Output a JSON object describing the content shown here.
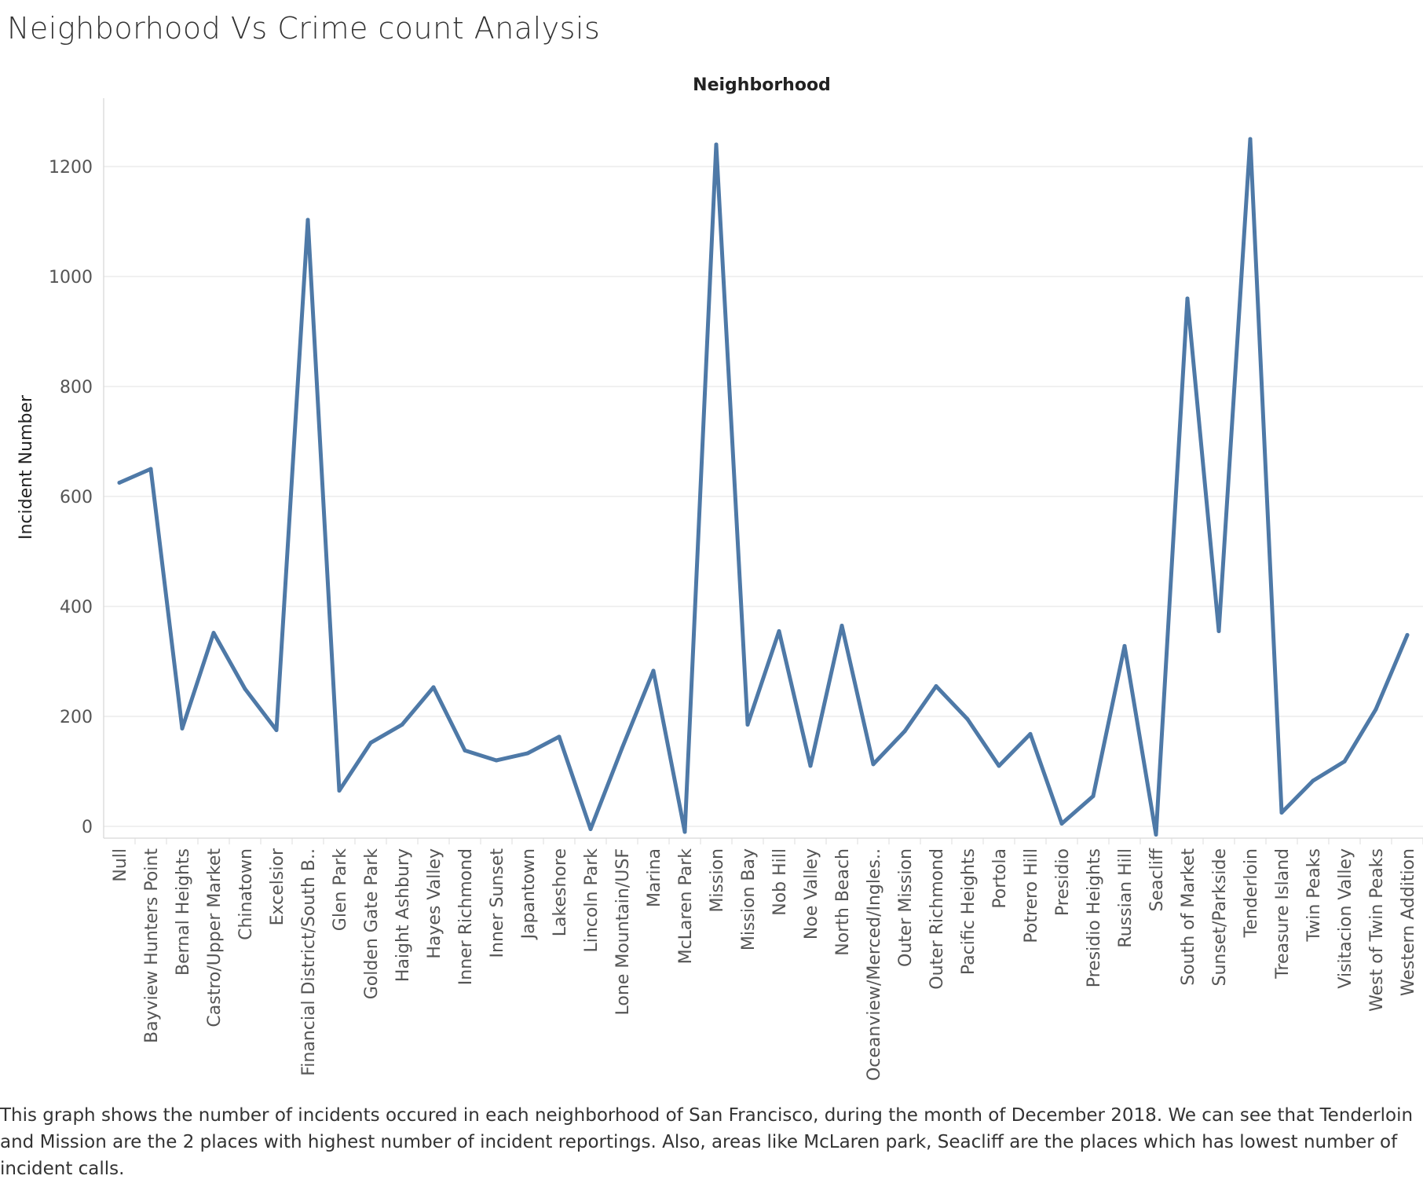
{
  "title": "Neighborhood Vs Crime count Analysis",
  "caption": "This graph shows the number of incidents occured in each neighborhood of San Francisco, during the month of December 2018. We can see that Tenderloin and Mission are the 2 places with highest number of incident reportings. Also, areas like McLaren park, Seacliff are the places which has lowest number of incident calls.",
  "colors": {
    "line": "#4e79a7",
    "grid": "#ececec",
    "axis": "#dddddd"
  },
  "chart_data": {
    "type": "line",
    "title": "Neighborhood Vs Crime count Analysis",
    "column_header": "Neighborhood",
    "xlabel": "",
    "ylabel": "Incident Number",
    "ylim": [
      -22,
      1320
    ],
    "yticks": [
      0,
      200,
      400,
      600,
      800,
      1000,
      1200
    ],
    "grid": true,
    "categories": [
      "Null",
      "Bayview Hunters Point",
      "Bernal Heights",
      "Castro/Upper Market",
      "Chinatown",
      "Excelsior",
      "Financial District/South B..",
      "Glen Park",
      "Golden Gate Park",
      "Haight Ashbury",
      "Hayes Valley",
      "Inner Richmond",
      "Inner Sunset",
      "Japantown",
      "Lakeshore",
      "Lincoln Park",
      "Lone Mountain/USF",
      "Marina",
      "McLaren Park",
      "Mission",
      "Mission Bay",
      "Nob Hill",
      "Noe Valley",
      "North Beach",
      "Oceanview/Merced/Ingles..",
      "Outer Mission",
      "Outer Richmond",
      "Pacific Heights",
      "Portola",
      "Potrero Hill",
      "Presidio",
      "Presidio Heights",
      "Russian Hill",
      "Seacliff",
      "South of Market",
      "Sunset/Parkside",
      "Tenderloin",
      "Treasure Island",
      "Twin Peaks",
      "Visitacion Valley",
      "West of Twin Peaks",
      "Western Addition"
    ],
    "series": [
      {
        "values": [
          625,
          650,
          178,
          352,
          250,
          175,
          1103,
          65,
          152,
          185,
          253,
          138,
          120,
          133,
          163,
          -5,
          142,
          283,
          -10,
          1240,
          185,
          355,
          110,
          365,
          113,
          173,
          255,
          195,
          110,
          168,
          5,
          55,
          328,
          -15,
          960,
          355,
          1250,
          25,
          83,
          118,
          213,
          348
        ]
      }
    ]
  }
}
